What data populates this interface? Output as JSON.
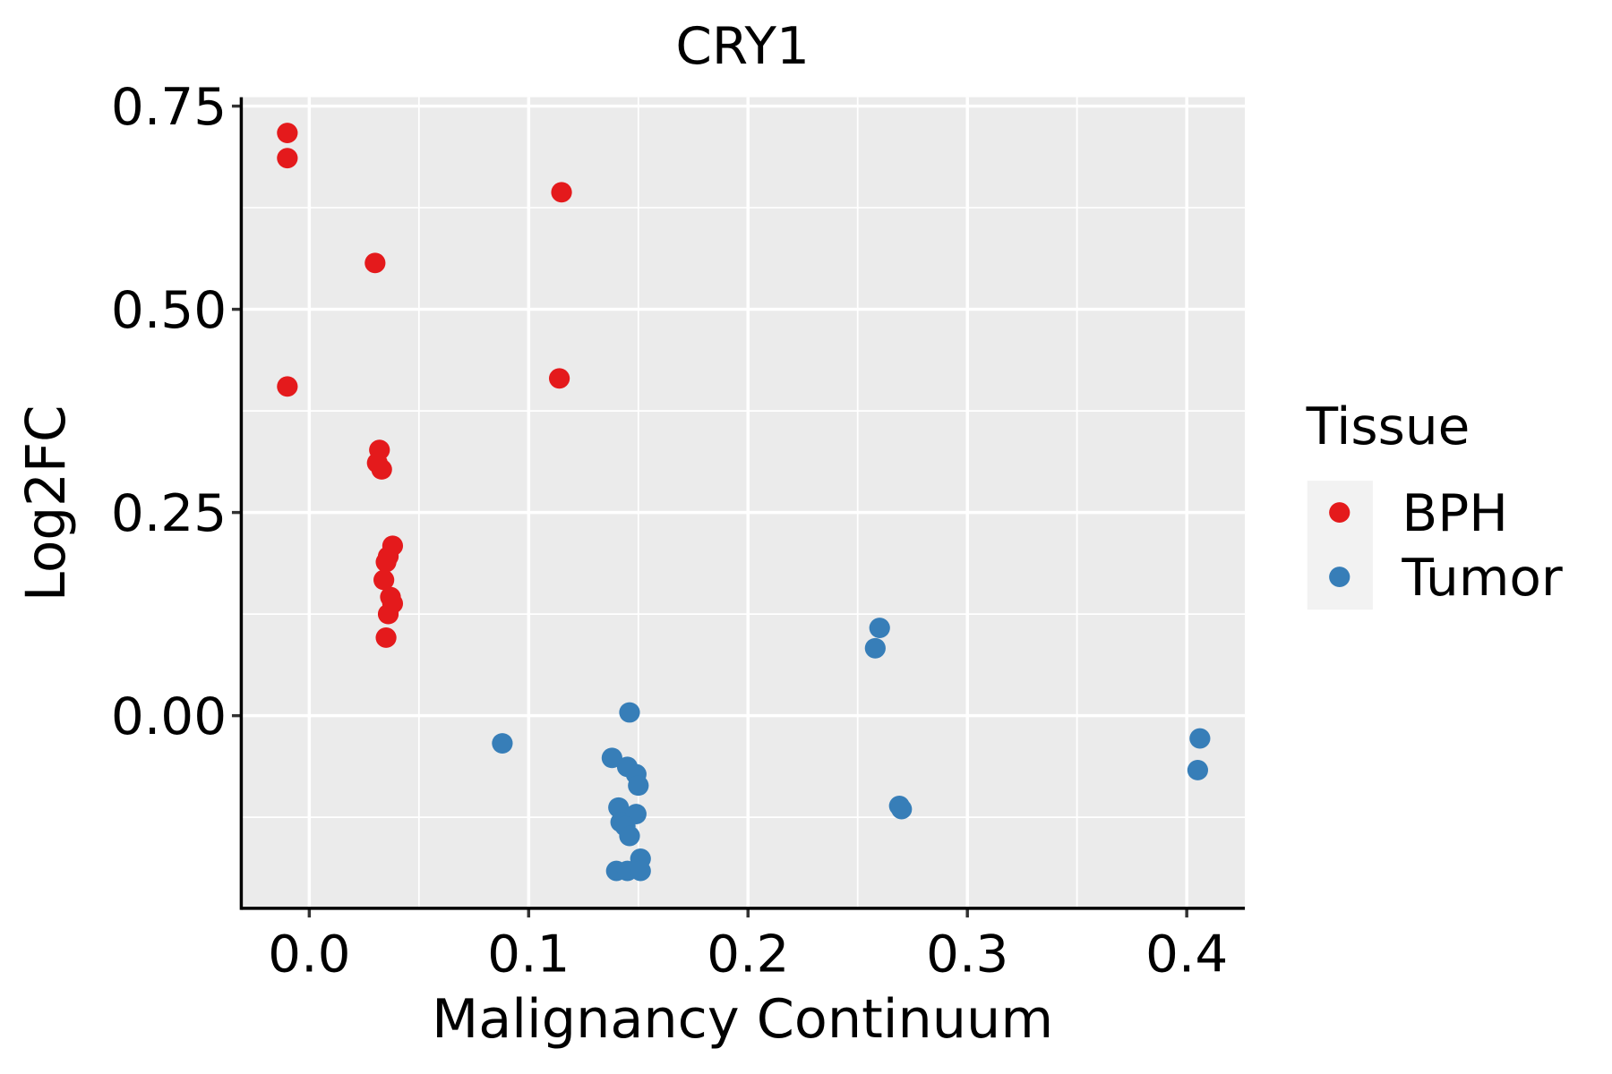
{
  "chart_data": {
    "type": "scatter",
    "title": "CRY1",
    "xlabel": "Malignancy Continuum",
    "ylabel": "Log2FC",
    "xlim": [
      -0.031,
      0.4265
    ],
    "ylim": [
      -0.237,
      0.761
    ],
    "xticks": [
      0.0,
      0.1,
      0.2,
      0.3,
      0.4
    ],
    "xtick_labels": [
      "0.0",
      "0.1",
      "0.2",
      "0.3",
      "0.4"
    ],
    "yticks": [
      0.0,
      0.25,
      0.5,
      0.75
    ],
    "ytick_labels": [
      "0.00",
      "0.25",
      "0.50",
      "0.75"
    ],
    "grid": true,
    "legend": {
      "title": "Tissue",
      "position": "right"
    },
    "series": [
      {
        "name": "BPH",
        "color": "#E41A1C",
        "points": [
          [
            -0.01,
            0.717
          ],
          [
            -0.01,
            0.686
          ],
          [
            0.115,
            0.644
          ],
          [
            0.03,
            0.557
          ],
          [
            -0.01,
            0.405
          ],
          [
            0.114,
            0.415
          ],
          [
            0.032,
            0.327
          ],
          [
            0.031,
            0.311
          ],
          [
            0.033,
            0.303
          ],
          [
            0.038,
            0.209
          ],
          [
            0.036,
            0.196
          ],
          [
            0.035,
            0.189
          ],
          [
            0.034,
            0.167
          ],
          [
            0.037,
            0.146
          ],
          [
            0.038,
            0.138
          ],
          [
            0.036,
            0.125
          ],
          [
            0.035,
            0.096
          ]
        ]
      },
      {
        "name": "Tumor",
        "color": "#377EB8",
        "points": [
          [
            0.26,
            0.108
          ],
          [
            0.258,
            0.083
          ],
          [
            0.146,
            0.004
          ],
          [
            0.088,
            -0.034
          ],
          [
            0.138,
            -0.052
          ],
          [
            0.145,
            -0.063
          ],
          [
            0.149,
            -0.072
          ],
          [
            0.15,
            -0.086
          ],
          [
            0.141,
            -0.113
          ],
          [
            0.149,
            -0.121
          ],
          [
            0.142,
            -0.131
          ],
          [
            0.144,
            -0.136
          ],
          [
            0.146,
            -0.148
          ],
          [
            0.151,
            -0.176
          ],
          [
            0.14,
            -0.191
          ],
          [
            0.145,
            -0.191
          ],
          [
            0.151,
            -0.191
          ],
          [
            0.269,
            -0.111
          ],
          [
            0.27,
            -0.115
          ],
          [
            0.406,
            -0.028
          ],
          [
            0.405,
            -0.067
          ]
        ]
      }
    ]
  }
}
